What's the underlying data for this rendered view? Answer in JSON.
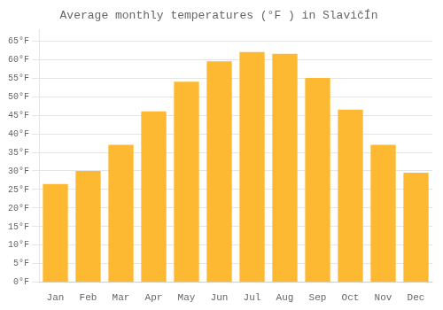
{
  "chart_data": {
    "type": "bar",
    "title": "Average monthly temperatures (°F ) in SlavičÍn",
    "categories": [
      "Jan",
      "Feb",
      "Mar",
      "Apr",
      "May",
      "Jun",
      "Jul",
      "Aug",
      "Sep",
      "Oct",
      "Nov",
      "Dec"
    ],
    "values": [
      26.5,
      30.0,
      37.0,
      46.0,
      54.0,
      59.5,
      62.0,
      61.5,
      55.0,
      46.5,
      37.0,
      29.5
    ],
    "color": "#FDB931",
    "ylim": [
      0,
      68
    ],
    "yticks": [
      {
        "value": 0,
        "label": "0°F"
      },
      {
        "value": 5,
        "label": "5°F"
      },
      {
        "value": 10,
        "label": "10°F"
      },
      {
        "value": 15,
        "label": "15°F"
      },
      {
        "value": 20,
        "label": "20°F"
      },
      {
        "value": 25,
        "label": "25°F"
      },
      {
        "value": 30,
        "label": "30°F"
      },
      {
        "value": 35,
        "label": "35°F"
      },
      {
        "value": 40,
        "label": "40°F"
      },
      {
        "value": 45,
        "label": "45°F"
      },
      {
        "value": 50,
        "label": "50°F"
      },
      {
        "value": 55,
        "label": "55°F"
      },
      {
        "value": 60,
        "label": "60°F"
      },
      {
        "value": 65,
        "label": "65°F"
      }
    ],
    "grid": true
  }
}
